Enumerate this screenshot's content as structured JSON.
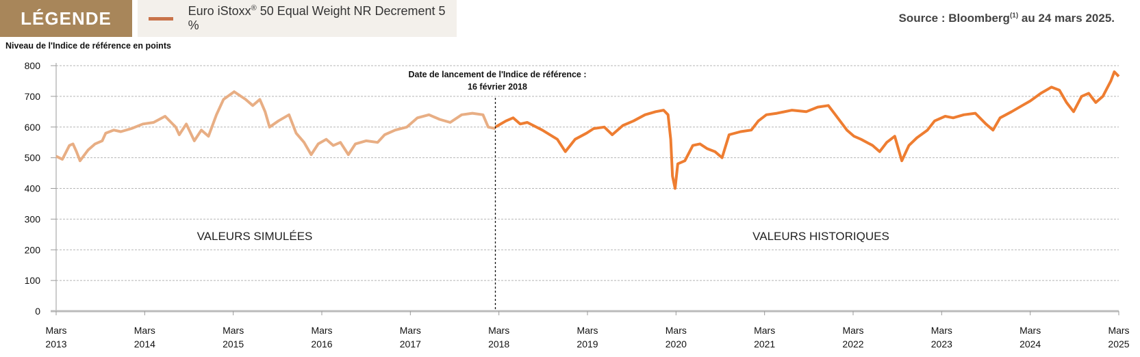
{
  "legend": {
    "title": "LÉGENDE",
    "series_label": "Euro iStoxx",
    "series_label_sup": "®",
    "series_label_rest": " 50 Equal Weight NR Decrement 5 %"
  },
  "source": {
    "text": "Source : Bloomberg",
    "sup": "(1)",
    "rest": " au 24 mars 2025."
  },
  "colors": {
    "brand": "#a8865a",
    "simulated": "#e8ae84",
    "historical": "#ee7d31",
    "legend_bg": "#f3f0eb"
  },
  "chart_data": {
    "type": "line",
    "ylabel": "Niveau de l'Indice de référence en points",
    "ylim": [
      0,
      800
    ],
    "yticks": [
      "0",
      "100",
      "200",
      "300",
      "400",
      "500",
      "600",
      "700",
      "800"
    ],
    "xlim": [
      2013.17,
      2025.17
    ],
    "xticks": [
      {
        "top": "Mars",
        "bottom": "2013"
      },
      {
        "top": "Mars",
        "bottom": "2014"
      },
      {
        "top": "Mars",
        "bottom": "2015"
      },
      {
        "top": "Mars",
        "bottom": "2016"
      },
      {
        "top": "Mars",
        "bottom": "2017"
      },
      {
        "top": "Mars",
        "bottom": "2018"
      },
      {
        "top": "Mars",
        "bottom": "2019"
      },
      {
        "top": "Mars",
        "bottom": "2020"
      },
      {
        "top": "Mars",
        "bottom": "2021"
      },
      {
        "top": "Mars",
        "bottom": "2022"
      },
      {
        "top": "Mars",
        "bottom": "2023"
      },
      {
        "top": "Mars",
        "bottom": "2024"
      },
      {
        "top": "Mars",
        "bottom": "2025"
      }
    ],
    "grid": true,
    "launch": {
      "x": 2018.13,
      "line1": "Date de lancement de l'Indice de référence :",
      "line2": "16 février 2018"
    },
    "regions": {
      "simulated": "VALEURS SIMULÉES",
      "historical": "VALEURS HISTORIQUES"
    },
    "series": [
      {
        "name": "Valeurs simulées",
        "points": [
          [
            2013.17,
            505
          ],
          [
            2013.24,
            495
          ],
          [
            2013.32,
            540
          ],
          [
            2013.36,
            545
          ],
          [
            2013.4,
            520
          ],
          [
            2013.44,
            490
          ],
          [
            2013.53,
            525
          ],
          [
            2013.61,
            545
          ],
          [
            2013.69,
            555
          ],
          [
            2013.73,
            580
          ],
          [
            2013.82,
            590
          ],
          [
            2013.9,
            585
          ],
          [
            2014.02,
            595
          ],
          [
            2014.15,
            610
          ],
          [
            2014.27,
            615
          ],
          [
            2014.4,
            635
          ],
          [
            2014.52,
            600
          ],
          [
            2014.56,
            575
          ],
          [
            2014.64,
            610
          ],
          [
            2014.73,
            555
          ],
          [
            2014.81,
            590
          ],
          [
            2014.89,
            570
          ],
          [
            2014.98,
            640
          ],
          [
            2015.06,
            690
          ],
          [
            2015.18,
            715
          ],
          [
            2015.31,
            690
          ],
          [
            2015.39,
            670
          ],
          [
            2015.47,
            690
          ],
          [
            2015.53,
            650
          ],
          [
            2015.58,
            600
          ],
          [
            2015.68,
            620
          ],
          [
            2015.8,
            640
          ],
          [
            2015.88,
            580
          ],
          [
            2015.97,
            550
          ],
          [
            2016.05,
            510
          ],
          [
            2016.13,
            545
          ],
          [
            2016.22,
            560
          ],
          [
            2016.3,
            540
          ],
          [
            2016.38,
            550
          ],
          [
            2016.47,
            510
          ],
          [
            2016.55,
            545
          ],
          [
            2016.67,
            555
          ],
          [
            2016.8,
            550
          ],
          [
            2016.88,
            575
          ],
          [
            2017.0,
            590
          ],
          [
            2017.13,
            600
          ],
          [
            2017.25,
            630
          ],
          [
            2017.38,
            640
          ],
          [
            2017.5,
            625
          ],
          [
            2017.62,
            615
          ],
          [
            2017.75,
            640
          ],
          [
            2017.87,
            645
          ],
          [
            2017.99,
            640
          ],
          [
            2018.05,
            600
          ],
          [
            2018.13,
            595
          ]
        ]
      },
      {
        "name": "Valeurs historiques",
        "points": [
          [
            2018.13,
            600
          ],
          [
            2018.16,
            605
          ],
          [
            2018.25,
            620
          ],
          [
            2018.33,
            630
          ],
          [
            2018.41,
            610
          ],
          [
            2018.49,
            615
          ],
          [
            2018.66,
            590
          ],
          [
            2018.83,
            560
          ],
          [
            2018.92,
            520
          ],
          [
            2019.03,
            560
          ],
          [
            2019.16,
            580
          ],
          [
            2019.24,
            595
          ],
          [
            2019.36,
            600
          ],
          [
            2019.45,
            575
          ],
          [
            2019.57,
            605
          ],
          [
            2019.69,
            620
          ],
          [
            2019.82,
            640
          ],
          [
            2019.94,
            650
          ],
          [
            2020.03,
            655
          ],
          [
            2020.08,
            640
          ],
          [
            2020.11,
            560
          ],
          [
            2020.13,
            440
          ],
          [
            2020.16,
            400
          ],
          [
            2020.19,
            480
          ],
          [
            2020.27,
            490
          ],
          [
            2020.36,
            540
          ],
          [
            2020.44,
            545
          ],
          [
            2020.52,
            530
          ],
          [
            2020.61,
            520
          ],
          [
            2020.69,
            500
          ],
          [
            2020.77,
            575
          ],
          [
            2020.9,
            585
          ],
          [
            2021.02,
            590
          ],
          [
            2021.1,
            620
          ],
          [
            2021.19,
            640
          ],
          [
            2021.31,
            645
          ],
          [
            2021.48,
            655
          ],
          [
            2021.64,
            650
          ],
          [
            2021.77,
            665
          ],
          [
            2021.89,
            670
          ],
          [
            2021.97,
            640
          ],
          [
            2022.1,
            590
          ],
          [
            2022.18,
            570
          ],
          [
            2022.26,
            560
          ],
          [
            2022.39,
            540
          ],
          [
            2022.47,
            520
          ],
          [
            2022.55,
            550
          ],
          [
            2022.64,
            570
          ],
          [
            2022.72,
            490
          ],
          [
            2022.8,
            540
          ],
          [
            2022.89,
            565
          ],
          [
            2023.01,
            590
          ],
          [
            2023.09,
            620
          ],
          [
            2023.21,
            635
          ],
          [
            2023.3,
            630
          ],
          [
            2023.42,
            640
          ],
          [
            2023.55,
            645
          ],
          [
            2023.67,
            610
          ],
          [
            2023.75,
            590
          ],
          [
            2023.83,
            630
          ],
          [
            2023.96,
            650
          ],
          [
            2024.08,
            670
          ],
          [
            2024.17,
            685
          ],
          [
            2024.29,
            710
          ],
          [
            2024.41,
            730
          ],
          [
            2024.5,
            720
          ],
          [
            2024.58,
            680
          ],
          [
            2024.66,
            650
          ],
          [
            2024.75,
            700
          ],
          [
            2024.83,
            710
          ],
          [
            2024.91,
            680
          ],
          [
            2024.99,
            700
          ],
          [
            2025.08,
            750
          ],
          [
            2025.12,
            780
          ],
          [
            2025.17,
            765
          ]
        ]
      }
    ]
  }
}
